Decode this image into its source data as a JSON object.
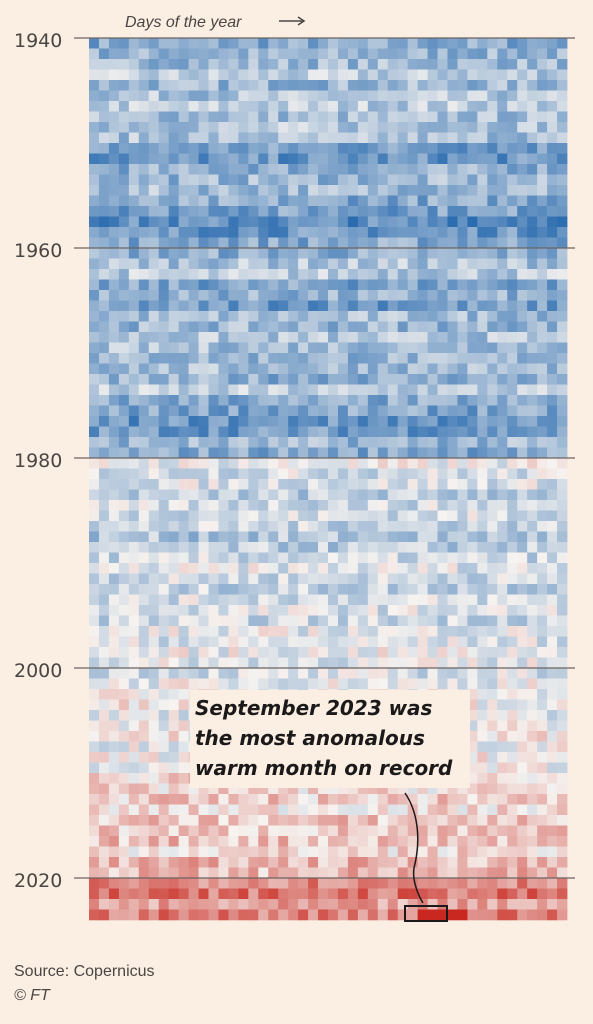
{
  "chart_data": {
    "type": "heatmap",
    "x_axis_title": "Days of the year",
    "y_range": [
      1940,
      2023
    ],
    "y_ticks": [
      "1940",
      "1960",
      "1980",
      "2000",
      "2020"
    ],
    "color_scale": {
      "cold": "#2b6cb0",
      "neutral": "#f6f3f0",
      "warm": "#c8281f"
    },
    "row_mean_anomaly": [
      -0.55,
      -0.48,
      -0.42,
      -0.3,
      -0.45,
      -0.35,
      -0.28,
      -0.4,
      -0.33,
      -0.38,
      -0.62,
      -0.7,
      -0.5,
      -0.45,
      -0.4,
      -0.55,
      -0.6,
      -0.75,
      -0.68,
      -0.55,
      -0.52,
      -0.35,
      -0.3,
      -0.6,
      -0.5,
      -0.65,
      -0.4,
      -0.45,
      -0.35,
      -0.38,
      -0.45,
      -0.4,
      -0.5,
      -0.3,
      -0.55,
      -0.58,
      -0.7,
      -0.65,
      -0.45,
      -0.55,
      -0.05,
      -0.15,
      -0.12,
      -0.3,
      -0.18,
      -0.15,
      -0.22,
      -0.35,
      -0.3,
      -0.2,
      -0.1,
      -0.18,
      -0.25,
      -0.15,
      -0.12,
      -0.2,
      -0.08,
      -0.12,
      -0.05,
      -0.1,
      -0.15,
      -0.05,
      -0.02,
      0.02,
      -0.08,
      0.0,
      0.05,
      -0.05,
      0.0,
      -0.02,
      0.15,
      0.1,
      0.18,
      0.08,
      0.22,
      0.18,
      0.25,
      0.12,
      0.3,
      0.28,
      0.55,
      0.62,
      0.35,
      0.58
    ],
    "highlight": {
      "year": 2023,
      "month": "September"
    },
    "annotation": [
      "September 2023 was",
      "the most anomalous",
      "warm month on record"
    ]
  },
  "footer": {
    "source": "Source: Copernicus",
    "credit": "© FT"
  }
}
